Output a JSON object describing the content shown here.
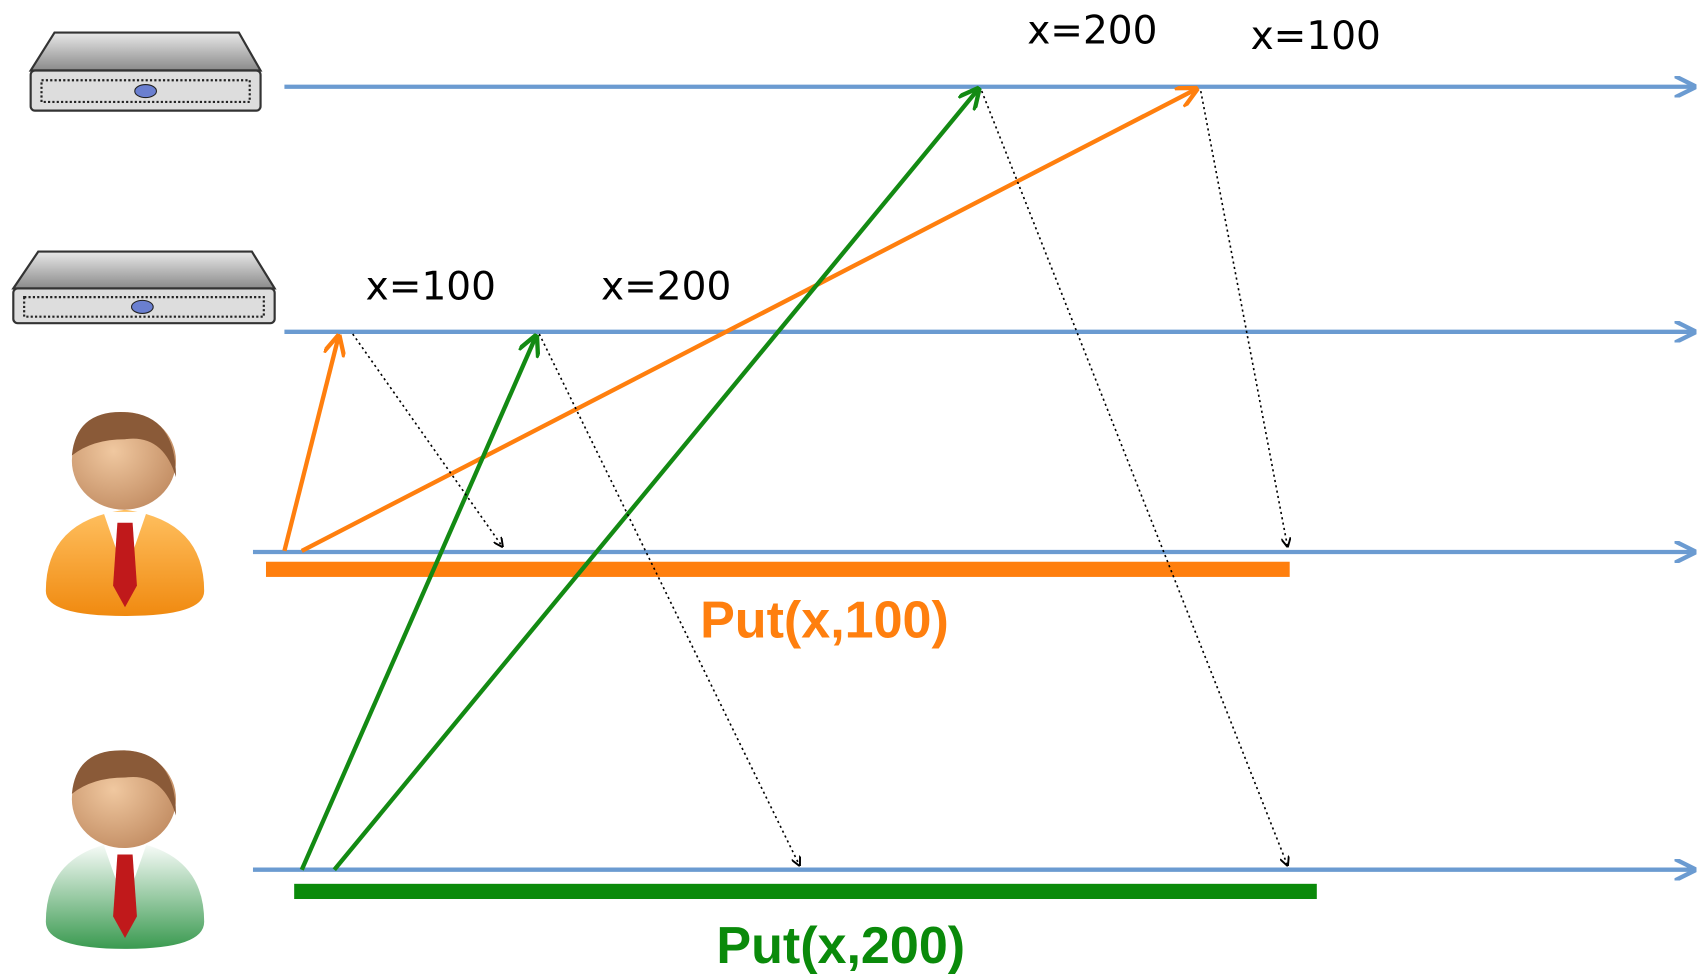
{
  "servers": [
    {
      "values": [
        "x=200",
        "x=100"
      ]
    },
    {
      "values": [
        "x=100",
        "x=200"
      ]
    }
  ],
  "operations": [
    {
      "label": "Put(x,100)"
    },
    {
      "label": "Put(x,200)"
    }
  ]
}
